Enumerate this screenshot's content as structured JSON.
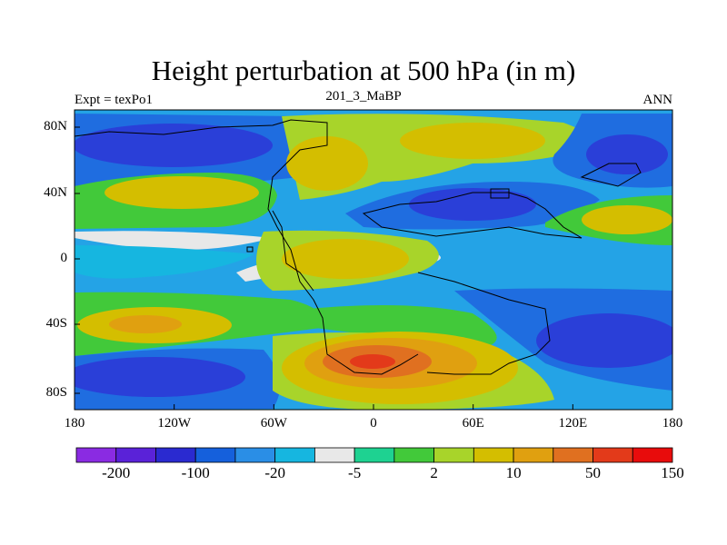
{
  "title": "Height perturbation at 500 hPa (in m)",
  "left_label": "Expt = texPo1",
  "center_label": "201_3_MaBP",
  "right_label": "ANN",
  "lon_ticks": [
    "180",
    "120W",
    "60W",
    "0",
    "60E",
    "120E",
    "180"
  ],
  "lat_ticks": [
    "80N",
    "40N",
    "0",
    "40S",
    "80S"
  ],
  "colorbar": {
    "colors": [
      "#8a2be2",
      "#5a22d8",
      "#2a2ad0",
      "#1560dc",
      "#2a8ee6",
      "#16b6e0",
      "#e8e8e8",
      "#1ed291",
      "#42c93a",
      "#a8d42a",
      "#d4be00",
      "#e0a010",
      "#e07020",
      "#e33a1a",
      "#e80c0c"
    ],
    "labels": [
      "-200",
      "-100",
      "-20",
      "-5",
      "2",
      "10",
      "50",
      "150"
    ]
  },
  "map": {
    "background_level": "light-blue",
    "palette": {
      "dark_blue": "#2a3fd8",
      "mid_blue": "#1f6de0",
      "light_blue": "#24a3e6",
      "cyan": "#16b6e0",
      "white": "#e8e8e8",
      "teal": "#1ed291",
      "green": "#42c93a",
      "yellow_green": "#a8d42a",
      "mustard": "#d4be00",
      "orange": "#e0a010",
      "dark_orange": "#e07020",
      "red": "#e33a1a",
      "coast": "#000000"
    }
  }
}
